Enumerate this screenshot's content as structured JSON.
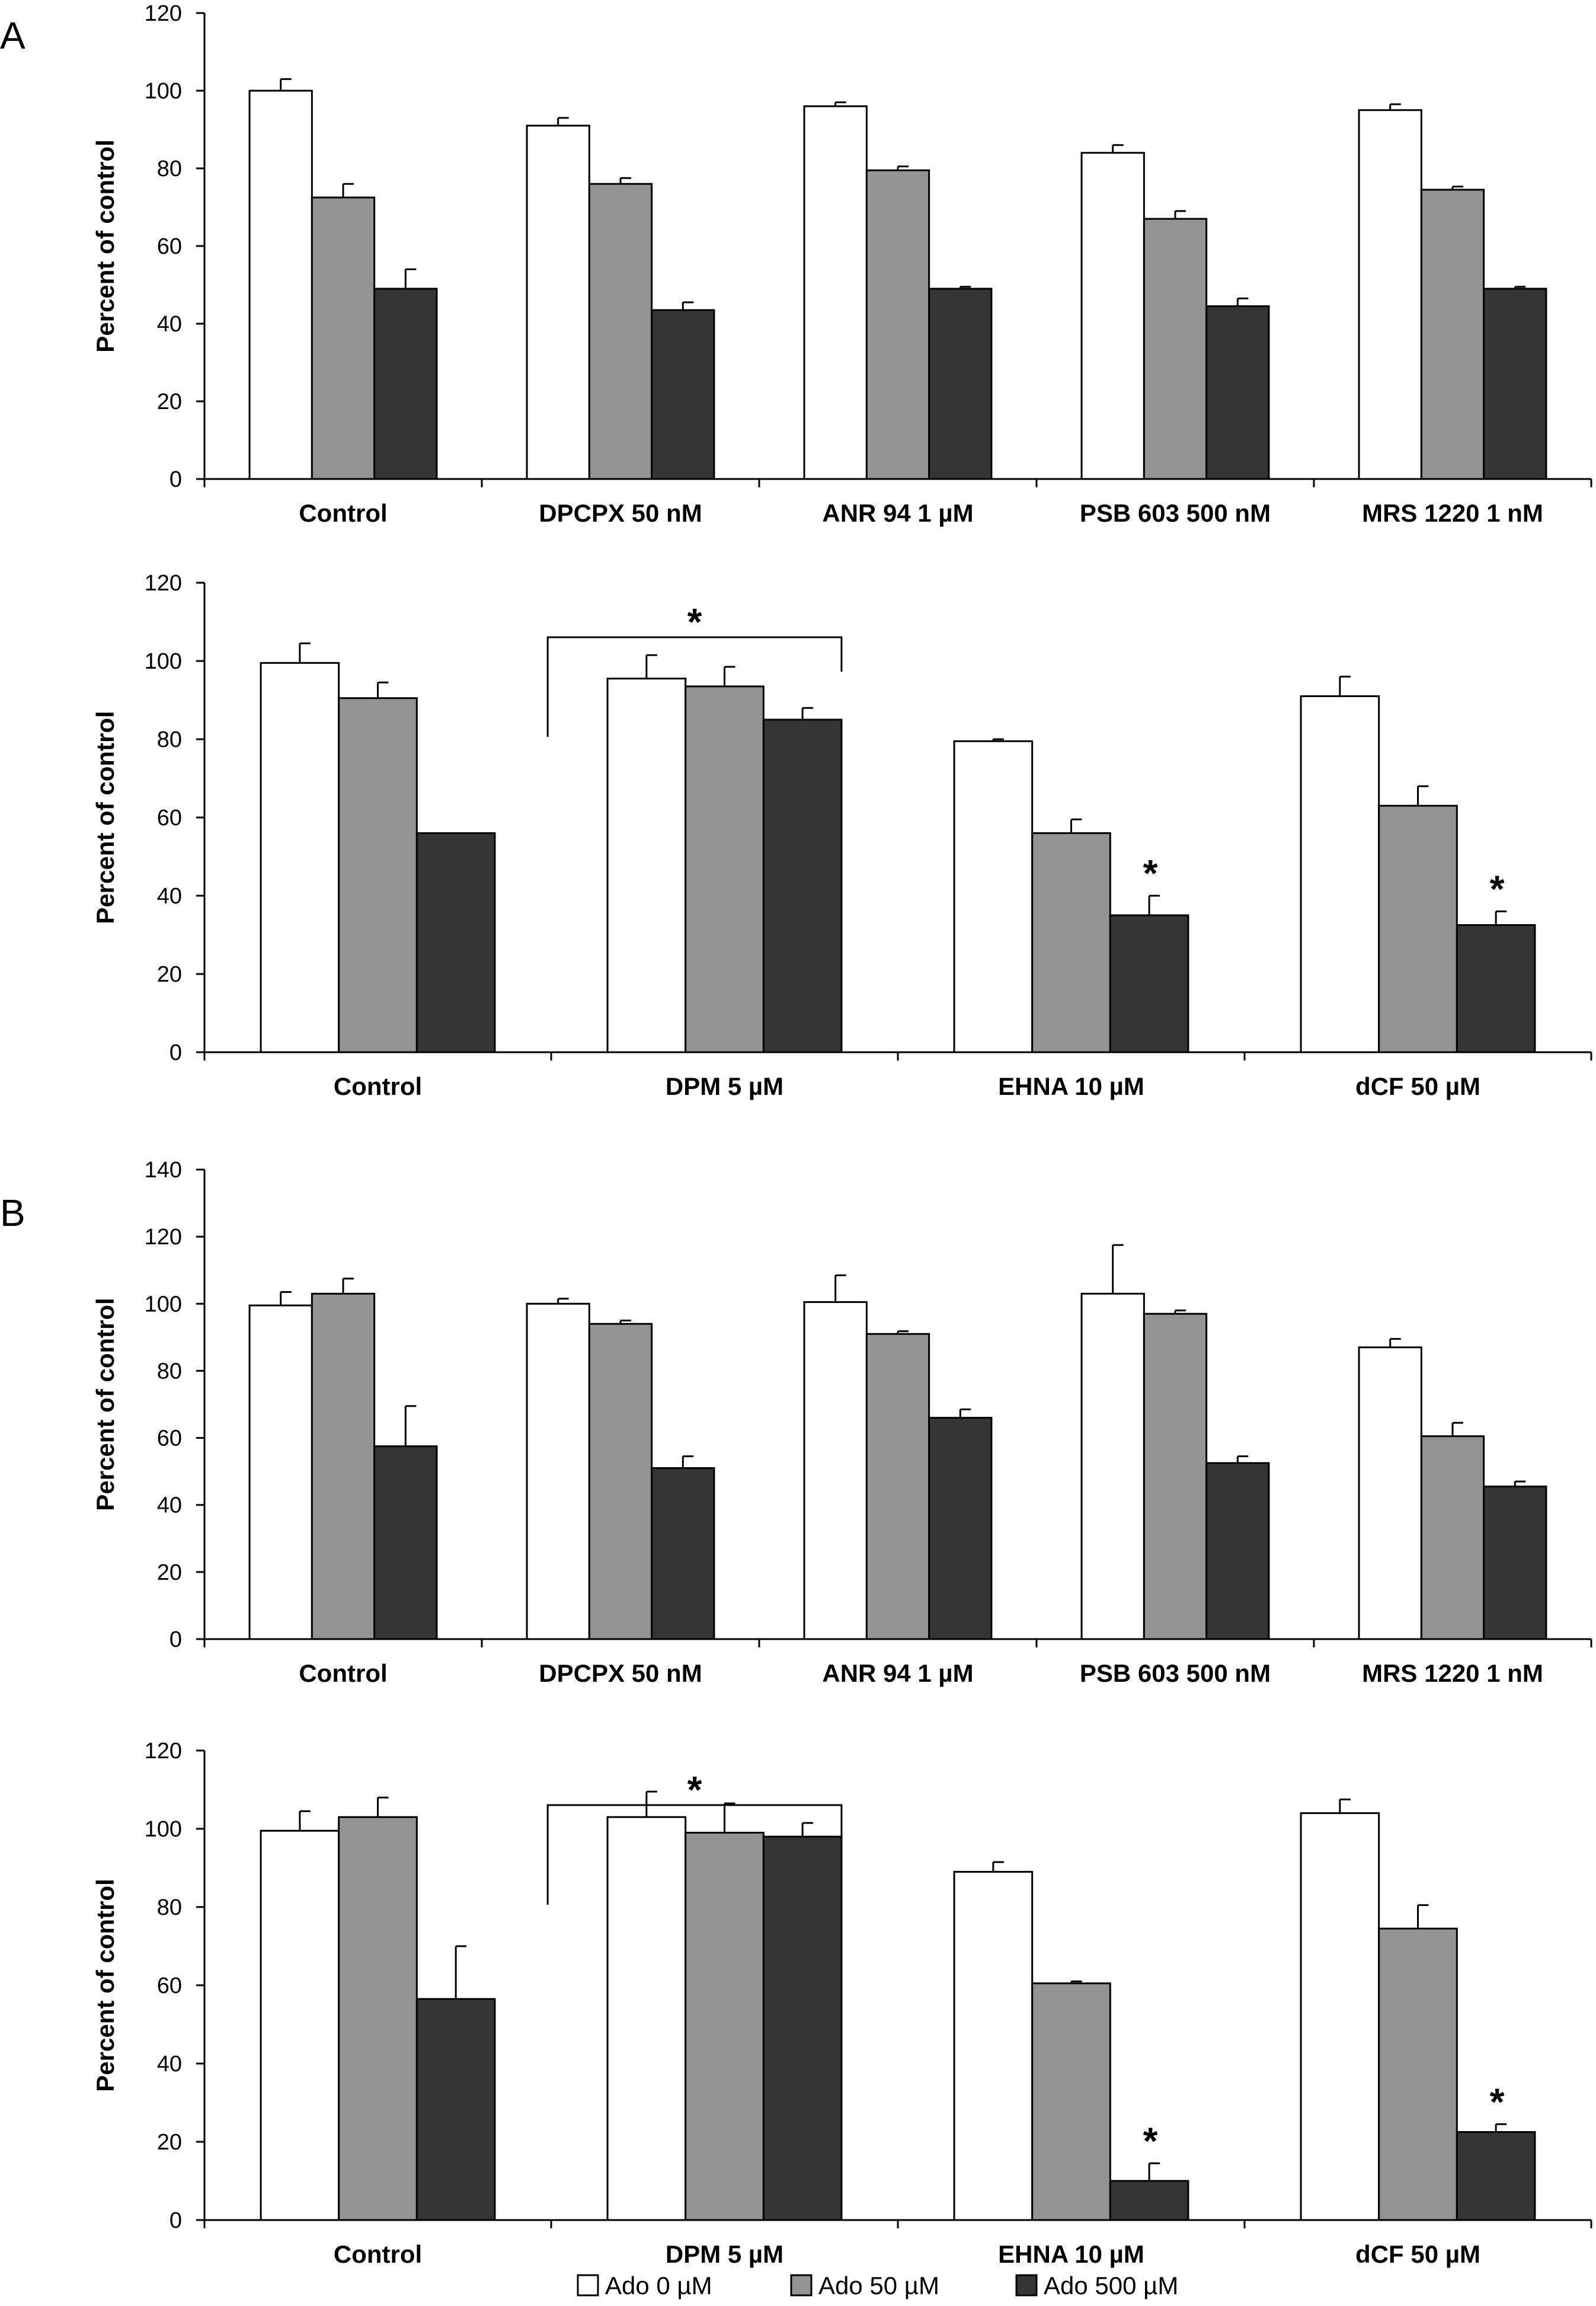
{
  "panel_letters": [
    "A",
    "B"
  ],
  "legend": [
    {
      "label": "Ado 0 µM",
      "color": "#ffffff"
    },
    {
      "label": "Ado 50 µM",
      "color": "#939393"
    },
    {
      "label": "Ado 500 µM",
      "color": "#353535"
    }
  ],
  "chart_data": [
    {
      "type": "bar",
      "panel": "A",
      "ylabel": "Percent of control",
      "ylim": [
        0,
        120
      ],
      "yticks": [
        0,
        20,
        40,
        60,
        80,
        100,
        120
      ],
      "categories": [
        "Control",
        "DPCPX 50 nM",
        "ANR 94 1 µM",
        "PSB 603 500 nM",
        "MRS 1220 1 nM"
      ],
      "series": [
        {
          "name": "Ado 0 µM",
          "values": [
            100,
            91,
            96,
            84,
            95
          ],
          "errors": [
            3,
            2,
            1,
            2,
            1.5
          ]
        },
        {
          "name": "Ado 50 µM",
          "values": [
            72.5,
            76,
            79.5,
            67,
            74.5
          ],
          "errors": [
            3.5,
            1.5,
            1,
            2,
            0.8
          ]
        },
        {
          "name": "Ado 500 µM",
          "values": [
            49,
            43.5,
            49,
            44.5,
            49
          ],
          "errors": [
            5,
            2,
            0.5,
            2,
            0.5
          ]
        }
      ],
      "annotations": []
    },
    {
      "type": "bar",
      "panel": "A",
      "ylabel": "Percent of control",
      "ylim": [
        0,
        120
      ],
      "yticks": [
        0,
        20,
        40,
        60,
        80,
        100,
        120
      ],
      "categories": [
        "Control",
        "DPM 5 µM",
        "EHNA 10 µM",
        "dCF 50 µM"
      ],
      "series": [
        {
          "name": "Ado 0 µM",
          "values": [
            99.5,
            95.5,
            79.5,
            91
          ],
          "errors": [
            5,
            6,
            0.5,
            5
          ]
        },
        {
          "name": "Ado 50 µM",
          "values": [
            90.5,
            93.5,
            56,
            63
          ],
          "errors": [
            4,
            5,
            3.5,
            5
          ]
        },
        {
          "name": "Ado 500 µM",
          "values": [
            56,
            85,
            35,
            32.5
          ],
          "errors": [
            0,
            3,
            5,
            3.5
          ]
        }
      ],
      "annotations": [
        {
          "type": "bracket",
          "category": 1,
          "label": "*"
        },
        {
          "type": "star",
          "category": 2,
          "series": 2,
          "label": "*"
        },
        {
          "type": "star",
          "category": 3,
          "series": 2,
          "label": "*"
        }
      ]
    },
    {
      "type": "bar",
      "panel": "B",
      "ylabel": "Percent of control",
      "ylim": [
        0,
        140
      ],
      "yticks": [
        0,
        20,
        40,
        60,
        80,
        100,
        120,
        140
      ],
      "categories": [
        "Control",
        "DPCPX 50 nM",
        "ANR 94 1 µM",
        "PSB 603 500 nM",
        "MRS 1220 1 nM"
      ],
      "series": [
        {
          "name": "Ado 0 µM",
          "values": [
            99.5,
            100,
            100.5,
            103,
            87
          ],
          "errors": [
            4,
            1.5,
            8,
            14.5,
            2.5
          ]
        },
        {
          "name": "Ado 50 µM",
          "values": [
            103,
            94,
            91,
            97,
            60.5
          ],
          "errors": [
            4.5,
            1,
            0.8,
            1,
            4
          ]
        },
        {
          "name": "Ado 500 µM",
          "values": [
            57.5,
            51,
            66,
            52.5,
            45.5
          ],
          "errors": [
            12,
            3.5,
            2.5,
            2,
            1.5
          ]
        }
      ],
      "annotations": []
    },
    {
      "type": "bar",
      "panel": "B",
      "ylabel": "Percent of control",
      "ylim": [
        0,
        120
      ],
      "yticks": [
        0,
        20,
        40,
        60,
        80,
        100,
        120
      ],
      "categories": [
        "Control",
        "DPM 5 µM",
        "EHNA 10 µM",
        "dCF 50 µM"
      ],
      "series": [
        {
          "name": "Ado 0 µM",
          "values": [
            99.5,
            103,
            89,
            104
          ],
          "errors": [
            5,
            6.5,
            2.5,
            3.5
          ]
        },
        {
          "name": "Ado 50 µM",
          "values": [
            103,
            99,
            60.5,
            74.5
          ],
          "errors": [
            5,
            7.5,
            0.5,
            6
          ]
        },
        {
          "name": "Ado 500 µM",
          "values": [
            56.5,
            98,
            10,
            22.5
          ],
          "errors": [
            13.5,
            3.5,
            4.5,
            2
          ]
        }
      ],
      "annotations": [
        {
          "type": "bracket",
          "category": 1,
          "label": "*"
        },
        {
          "type": "star",
          "category": 2,
          "series": 2,
          "label": "*"
        },
        {
          "type": "star",
          "category": 3,
          "series": 2,
          "label": "*"
        }
      ]
    }
  ]
}
